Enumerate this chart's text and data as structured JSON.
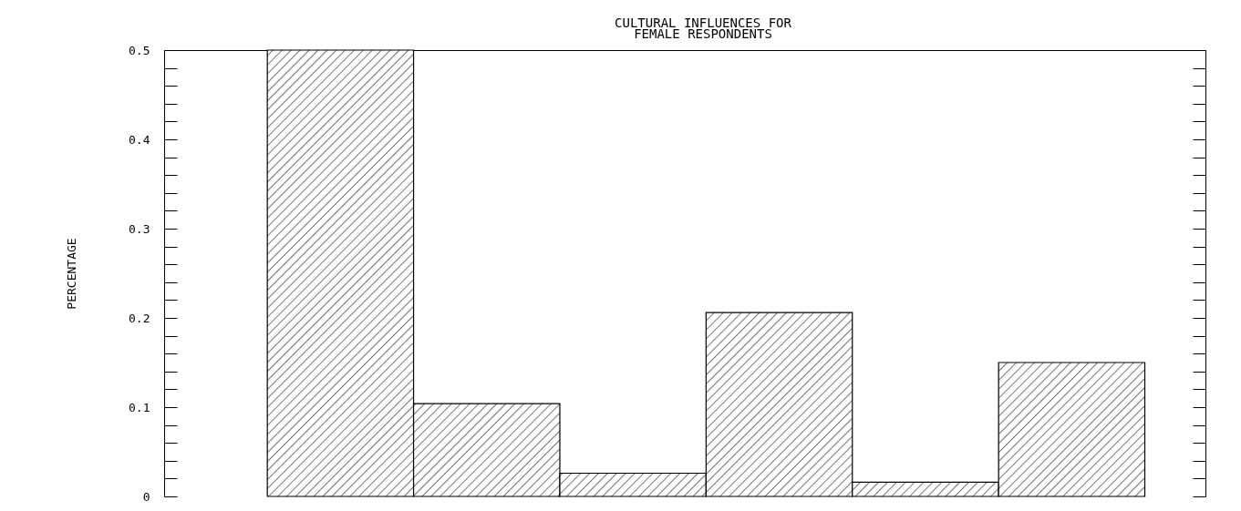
{
  "chart_data": {
    "type": "bar",
    "title": "CULTURAL INFLUENCES FOR\nFEMALE RESPONDENTS",
    "ylabel": "PERCENTAGE",
    "categories": [
      null,
      null,
      null,
      null,
      null,
      null
    ],
    "values": [
      0.5,
      0.104,
      0.026,
      0.206,
      0.016,
      0.15
    ],
    "color": "#000000",
    "ylim": [
      0,
      0.5
    ],
    "yticks": [
      0,
      {
        "value": 0.02,
        "label": null
      },
      {
        "value": 0.04,
        "label": null
      },
      {
        "value": 0.06,
        "label": null
      },
      {
        "value": 0.08,
        "label": null
      },
      0.1,
      {
        "value": 0.12,
        "label": null
      },
      {
        "value": 0.14,
        "label": null
      },
      {
        "value": 0.16,
        "label": null
      },
      {
        "value": 0.18,
        "label": null
      },
      0.2,
      {
        "value": 0.22,
        "label": null
      },
      {
        "value": 0.24,
        "label": null
      },
      {
        "value": 0.26,
        "label": null
      },
      {
        "value": 0.28,
        "label": null
      },
      0.3,
      {
        "value": 0.32,
        "label": null
      },
      {
        "value": 0.34,
        "label": null
      },
      {
        "value": 0.36,
        "label": null
      },
      {
        "value": 0.38,
        "label": null
      },
      0.4,
      {
        "value": 0.42,
        "label": null
      },
      {
        "value": 0.44,
        "label": null
      },
      {
        "value": 0.46,
        "label": null
      },
      {
        "value": 0.48,
        "label": null
      },
      0.5
    ],
    "tick_labels": "y",
    "grid": false
  }
}
